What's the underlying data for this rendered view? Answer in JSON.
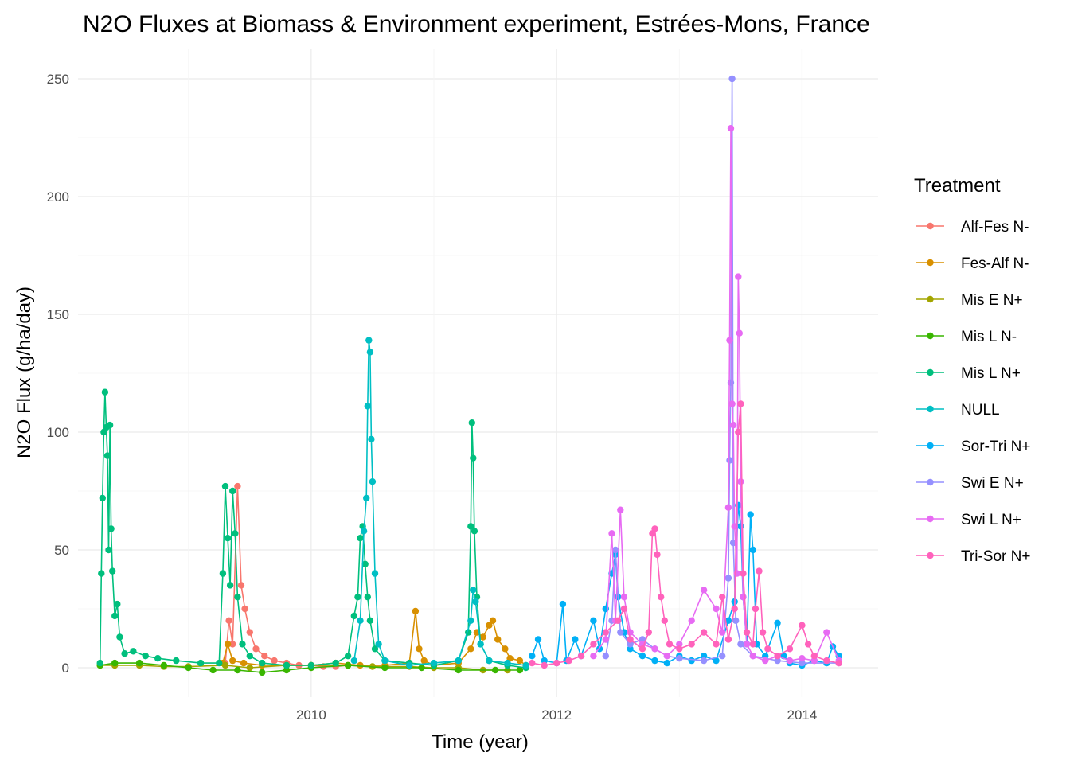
{
  "chart_data": {
    "type": "line",
    "title": "N2O Fluxes at Biomass & Environment experiment, Estrées-Mons, France",
    "xlabel": "Time (year)",
    "ylabel": "N2O Flux (g/ha/day)",
    "xlim": [
      2008.1,
      2014.62
    ],
    "ylim": [
      -12.5,
      262.5
    ],
    "x_ticks": [
      2010,
      2012,
      2014
    ],
    "y_ticks": [
      0,
      50,
      100,
      150,
      200,
      250
    ],
    "grid": true,
    "legend": {
      "title": "Treatment",
      "position": "right"
    },
    "series": [
      {
        "name": "Alf-Fes N-",
        "color": "#F8766D",
        "points": [
          [
            2009.3,
            2
          ],
          [
            2009.33,
            20
          ],
          [
            2009.36,
            10
          ],
          [
            2009.4,
            77
          ],
          [
            2009.43,
            35
          ],
          [
            2009.46,
            25
          ],
          [
            2009.5,
            15
          ],
          [
            2009.55,
            8
          ],
          [
            2009.62,
            5
          ],
          [
            2009.7,
            3
          ],
          [
            2009.8,
            2
          ],
          [
            2009.9,
            1
          ],
          [
            2010.0,
            1
          ],
          [
            2010.1,
            0.5
          ],
          [
            2010.2,
            0.5
          ],
          [
            2010.3,
            1
          ]
        ]
      },
      {
        "name": "Fes-Alf N-",
        "color": "#D89000",
        "points": [
          [
            2009.28,
            2
          ],
          [
            2009.32,
            10
          ],
          [
            2009.36,
            3
          ],
          [
            2009.45,
            2
          ],
          [
            2009.6,
            1
          ],
          [
            2009.8,
            1
          ],
          [
            2010.0,
            1
          ],
          [
            2010.2,
            2
          ],
          [
            2010.4,
            1
          ],
          [
            2010.6,
            1
          ],
          [
            2010.8,
            2
          ],
          [
            2010.85,
            24
          ],
          [
            2010.88,
            8
          ],
          [
            2010.92,
            3
          ],
          [
            2011.0,
            1
          ],
          [
            2011.2,
            2
          ],
          [
            2011.3,
            8
          ],
          [
            2011.35,
            15
          ],
          [
            2011.4,
            13
          ],
          [
            2011.45,
            18
          ],
          [
            2011.48,
            20
          ],
          [
            2011.52,
            12
          ],
          [
            2011.58,
            8
          ],
          [
            2011.62,
            4
          ],
          [
            2011.7,
            3
          ],
          [
            2011.75,
            1
          ]
        ]
      },
      {
        "name": "Mis E N+",
        "color": "#A3A500",
        "points": [
          [
            2008.28,
            1
          ],
          [
            2008.4,
            1
          ],
          [
            2008.6,
            1
          ],
          [
            2008.8,
            0.5
          ],
          [
            2009.0,
            0.5
          ],
          [
            2009.3,
            1
          ],
          [
            2009.5,
            0
          ],
          [
            2009.8,
            1
          ],
          [
            2010.0,
            1
          ],
          [
            2010.3,
            1
          ],
          [
            2010.5,
            0.5
          ],
          [
            2010.8,
            0.5
          ],
          [
            2011.0,
            0
          ],
          [
            2011.2,
            0
          ],
          [
            2011.4,
            -1
          ],
          [
            2011.6,
            -1
          ]
        ]
      },
      {
        "name": "Mis L N-",
        "color": "#39B600",
        "points": [
          [
            2008.28,
            1
          ],
          [
            2008.4,
            2
          ],
          [
            2008.6,
            2
          ],
          [
            2008.8,
            1
          ],
          [
            2009.0,
            0
          ],
          [
            2009.2,
            -1
          ],
          [
            2009.4,
            -1
          ],
          [
            2009.6,
            -2
          ],
          [
            2009.8,
            -1
          ],
          [
            2010.0,
            0
          ],
          [
            2010.3,
            1
          ],
          [
            2010.6,
            0
          ],
          [
            2010.9,
            0
          ],
          [
            2011.2,
            -1
          ],
          [
            2011.5,
            -1
          ],
          [
            2011.7,
            -1
          ]
        ]
      },
      {
        "name": "Mis L N+",
        "color": "#00BF7D",
        "points": [
          [
            2008.28,
            2
          ],
          [
            2008.29,
            40
          ],
          [
            2008.3,
            72
          ],
          [
            2008.31,
            100
          ],
          [
            2008.32,
            117
          ],
          [
            2008.33,
            102
          ],
          [
            2008.34,
            90
          ],
          [
            2008.35,
            50
          ],
          [
            2008.36,
            103
          ],
          [
            2008.37,
            59
          ],
          [
            2008.38,
            41
          ],
          [
            2008.4,
            22
          ],
          [
            2008.42,
            27
          ],
          [
            2008.44,
            13
          ],
          [
            2008.48,
            6
          ],
          [
            2008.55,
            7
          ],
          [
            2008.65,
            5
          ],
          [
            2008.75,
            4
          ],
          [
            2008.9,
            3
          ],
          [
            2009.1,
            2
          ],
          [
            2009.25,
            2
          ],
          [
            2009.28,
            40
          ],
          [
            2009.3,
            77
          ],
          [
            2009.32,
            55
          ],
          [
            2009.34,
            35
          ],
          [
            2009.36,
            75
          ],
          [
            2009.38,
            57
          ],
          [
            2009.4,
            30
          ],
          [
            2009.44,
            10
          ],
          [
            2009.5,
            5
          ],
          [
            2009.6,
            2
          ],
          [
            2009.8,
            1
          ],
          [
            2010.0,
            1
          ],
          [
            2010.2,
            2
          ],
          [
            2010.3,
            5
          ],
          [
            2010.35,
            22
          ],
          [
            2010.38,
            30
          ],
          [
            2010.4,
            55
          ],
          [
            2010.42,
            60
          ],
          [
            2010.44,
            44
          ],
          [
            2010.46,
            30
          ],
          [
            2010.48,
            20
          ],
          [
            2010.52,
            8
          ],
          [
            2010.6,
            3
          ],
          [
            2010.8,
            2
          ],
          [
            2011.0,
            1
          ],
          [
            2011.2,
            3
          ],
          [
            2011.28,
            15
          ],
          [
            2011.3,
            60
          ],
          [
            2011.31,
            104
          ],
          [
            2011.32,
            89
          ],
          [
            2011.33,
            58
          ],
          [
            2011.35,
            30
          ],
          [
            2011.38,
            10
          ],
          [
            2011.45,
            3
          ],
          [
            2011.6,
            1
          ],
          [
            2011.75,
            0
          ]
        ]
      },
      {
        "name": "NULL",
        "color": "#00BFC4",
        "points": [
          [
            2010.35,
            3
          ],
          [
            2010.4,
            20
          ],
          [
            2010.43,
            58
          ],
          [
            2010.45,
            72
          ],
          [
            2010.46,
            111
          ],
          [
            2010.47,
            139
          ],
          [
            2010.48,
            134
          ],
          [
            2010.49,
            97
          ],
          [
            2010.5,
            79
          ],
          [
            2010.52,
            40
          ],
          [
            2010.55,
            10
          ],
          [
            2010.6,
            3
          ],
          [
            2010.8,
            1
          ],
          [
            2011.0,
            2
          ],
          [
            2011.2,
            3
          ],
          [
            2011.3,
            20
          ],
          [
            2011.32,
            33
          ],
          [
            2011.34,
            28
          ],
          [
            2011.38,
            10
          ],
          [
            2011.45,
            3
          ],
          [
            2011.6,
            2
          ],
          [
            2011.75,
            1
          ]
        ]
      },
      {
        "name": "Sor-Tri N+",
        "color": "#00B0F6",
        "points": [
          [
            2011.8,
            5
          ],
          [
            2011.85,
            12
          ],
          [
            2011.9,
            3
          ],
          [
            2012.0,
            2
          ],
          [
            2012.05,
            27
          ],
          [
            2012.08,
            3
          ],
          [
            2012.15,
            12
          ],
          [
            2012.2,
            5
          ],
          [
            2012.3,
            20
          ],
          [
            2012.35,
            8
          ],
          [
            2012.4,
            25
          ],
          [
            2012.45,
            40
          ],
          [
            2012.48,
            48
          ],
          [
            2012.5,
            30
          ],
          [
            2012.55,
            15
          ],
          [
            2012.6,
            8
          ],
          [
            2012.7,
            5
          ],
          [
            2012.8,
            3
          ],
          [
            2012.9,
            2
          ],
          [
            2013.0,
            5
          ],
          [
            2013.1,
            3
          ],
          [
            2013.2,
            5
          ],
          [
            2013.3,
            3
          ],
          [
            2013.4,
            20
          ],
          [
            2013.45,
            28
          ],
          [
            2013.48,
            69
          ],
          [
            2013.5,
            60
          ],
          [
            2013.52,
            30
          ],
          [
            2013.55,
            10
          ],
          [
            2013.58,
            65
          ],
          [
            2013.6,
            50
          ],
          [
            2013.63,
            10
          ],
          [
            2013.7,
            5
          ],
          [
            2013.8,
            19
          ],
          [
            2013.85,
            5
          ],
          [
            2013.9,
            2
          ],
          [
            2014.0,
            1
          ],
          [
            2014.1,
            3
          ],
          [
            2014.2,
            2
          ],
          [
            2014.25,
            9
          ],
          [
            2014.3,
            5
          ]
        ]
      },
      {
        "name": "Swi E N+",
        "color": "#9590FF",
        "points": [
          [
            2012.4,
            5
          ],
          [
            2012.45,
            20
          ],
          [
            2012.48,
            50
          ],
          [
            2012.52,
            15
          ],
          [
            2012.6,
            10
          ],
          [
            2012.7,
            12
          ],
          [
            2012.8,
            8
          ],
          [
            2012.9,
            5
          ],
          [
            2013.0,
            4
          ],
          [
            2013.2,
            3
          ],
          [
            2013.35,
            5
          ],
          [
            2013.4,
            38
          ],
          [
            2013.41,
            88
          ],
          [
            2013.42,
            121
          ],
          [
            2013.43,
            250
          ],
          [
            2013.44,
            53
          ],
          [
            2013.46,
            20
          ],
          [
            2013.5,
            10
          ],
          [
            2013.6,
            5
          ],
          [
            2013.8,
            3
          ],
          [
            2014.0,
            2
          ],
          [
            2014.3,
            2
          ]
        ]
      },
      {
        "name": "Swi L N+",
        "color": "#E76BF3",
        "points": [
          [
            2012.3,
            5
          ],
          [
            2012.4,
            12
          ],
          [
            2012.45,
            57
          ],
          [
            2012.48,
            20
          ],
          [
            2012.52,
            67
          ],
          [
            2012.55,
            30
          ],
          [
            2012.6,
            15
          ],
          [
            2012.7,
            10
          ],
          [
            2012.8,
            8
          ],
          [
            2012.9,
            5
          ],
          [
            2013.0,
            10
          ],
          [
            2013.1,
            20
          ],
          [
            2013.2,
            33
          ],
          [
            2013.3,
            25
          ],
          [
            2013.35,
            15
          ],
          [
            2013.4,
            68
          ],
          [
            2013.41,
            139
          ],
          [
            2013.42,
            229
          ],
          [
            2013.43,
            112
          ],
          [
            2013.44,
            103
          ],
          [
            2013.45,
            60
          ],
          [
            2013.47,
            40
          ],
          [
            2013.48,
            166
          ],
          [
            2013.49,
            142
          ],
          [
            2013.5,
            79
          ],
          [
            2013.52,
            30
          ],
          [
            2013.55,
            10
          ],
          [
            2013.6,
            5
          ],
          [
            2013.7,
            3
          ],
          [
            2013.8,
            5
          ],
          [
            2013.9,
            3
          ],
          [
            2014.0,
            4
          ],
          [
            2014.1,
            3
          ],
          [
            2014.2,
            15
          ],
          [
            2014.3,
            3
          ]
        ]
      },
      {
        "name": "Tri-Sor N+",
        "color": "#FF62BC",
        "points": [
          [
            2011.8,
            2
          ],
          [
            2011.9,
            1
          ],
          [
            2012.0,
            2
          ],
          [
            2012.1,
            3
          ],
          [
            2012.2,
            5
          ],
          [
            2012.3,
            10
          ],
          [
            2012.4,
            15
          ],
          [
            2012.5,
            20
          ],
          [
            2012.55,
            25
          ],
          [
            2012.6,
            12
          ],
          [
            2012.7,
            8
          ],
          [
            2012.75,
            15
          ],
          [
            2012.78,
            57
          ],
          [
            2012.8,
            59
          ],
          [
            2012.82,
            48
          ],
          [
            2012.85,
            30
          ],
          [
            2012.88,
            20
          ],
          [
            2012.92,
            10
          ],
          [
            2013.0,
            8
          ],
          [
            2013.1,
            10
          ],
          [
            2013.2,
            15
          ],
          [
            2013.3,
            10
          ],
          [
            2013.35,
            30
          ],
          [
            2013.4,
            12
          ],
          [
            2013.45,
            25
          ],
          [
            2013.48,
            100
          ],
          [
            2013.5,
            112
          ],
          [
            2013.52,
            40
          ],
          [
            2013.55,
            15
          ],
          [
            2013.6,
            10
          ],
          [
            2013.62,
            25
          ],
          [
            2013.65,
            41
          ],
          [
            2013.68,
            15
          ],
          [
            2013.72,
            8
          ],
          [
            2013.8,
            5
          ],
          [
            2013.9,
            8
          ],
          [
            2014.0,
            18
          ],
          [
            2014.05,
            10
          ],
          [
            2014.1,
            5
          ],
          [
            2014.2,
            3
          ],
          [
            2014.3,
            2
          ]
        ]
      }
    ]
  }
}
